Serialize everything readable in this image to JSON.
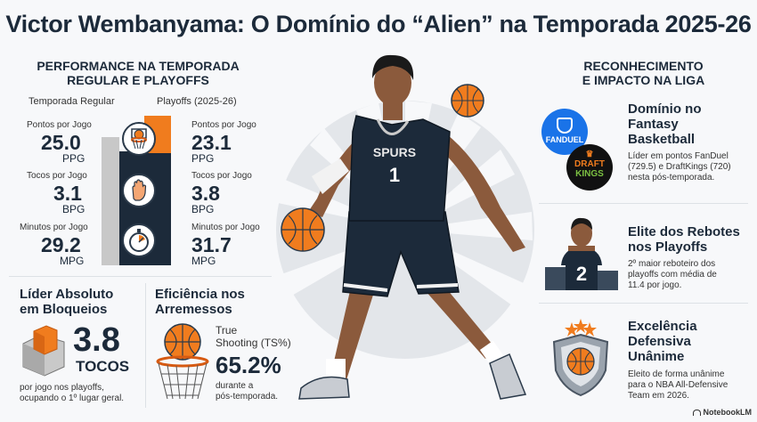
{
  "title": "Victor Wembanyama: O Domínio do “Alien” na Temporada 2025-26",
  "performance": {
    "title_line1": "PERFORMANCE NA TEMPORADA",
    "title_line2": "REGULAR E PLAYOFFS",
    "col_regular": "Temporada Regular",
    "col_playoffs": "Playoffs (2025-26)",
    "stats": [
      {
        "label": "Pontos por Jogo",
        "regular": "25.0",
        "playoffs": "23.1",
        "unit": "PPG",
        "icon": "basketball-hoop-icon"
      },
      {
        "label": "Tocos por Jogo",
        "regular": "3.1",
        "playoffs": "3.8",
        "unit": "BPG",
        "icon": "blocking-hand-icon"
      },
      {
        "label": "Minutos por Jogo",
        "regular": "29.2",
        "playoffs": "31.7",
        "unit": "MPG",
        "icon": "stopwatch-icon"
      }
    ]
  },
  "blocks": {
    "heading_line1": "Líder Absoluto",
    "heading_line2": "em Bloqueios",
    "value": "3.8",
    "unit": "TOCOS",
    "desc_line1": "por jogo nos playoffs,",
    "desc_line2": "ocupando o 1º lugar geral."
  },
  "efficiency": {
    "heading_line1": "Eficiência nos",
    "heading_line2": "Arremessos",
    "label_line1": "True",
    "label_line2": "Shooting (TS%)",
    "value": "65.2%",
    "desc_line1": "durante a",
    "desc_line2": "pós-temporada."
  },
  "player": {
    "jersey_team": "SPURS",
    "jersey_number": "1"
  },
  "recognition": {
    "title_line1": "RECONHECIMENTO",
    "title_line2": "E IMPACTO NA LIGA",
    "items": [
      {
        "heading_lines": [
          "Domínio no",
          "Fantasy",
          "Basketball"
        ],
        "desc_lines": [
          "Líder em pontos FanDuel",
          "(729.5) e DraftKings (720)",
          "nesta pós-temporada."
        ],
        "logo1": "FANDUEL",
        "logo2_line1": "DRAFT",
        "logo2_line2": "KINGS"
      },
      {
        "heading_lines": [
          "Elite dos Rebotes",
          "nos Playoffs"
        ],
        "desc_lines": [
          "2º maior reboteiro dos",
          "playoffs com média de",
          "11.4 por jogo."
        ],
        "podium_number": "2"
      },
      {
        "heading_lines": [
          "Excelência",
          "Defensiva",
          "Unânime"
        ],
        "desc_lines": [
          "Eleito de forma unânime",
          "para o NBA All-Defensive",
          "Team em 2026."
        ]
      }
    ]
  },
  "footer": {
    "brand": "NotebookLM"
  },
  "colors": {
    "orange": "#f07c1e",
    "navy": "#1c2a3a",
    "gray_bar": "#c8c8c8"
  }
}
